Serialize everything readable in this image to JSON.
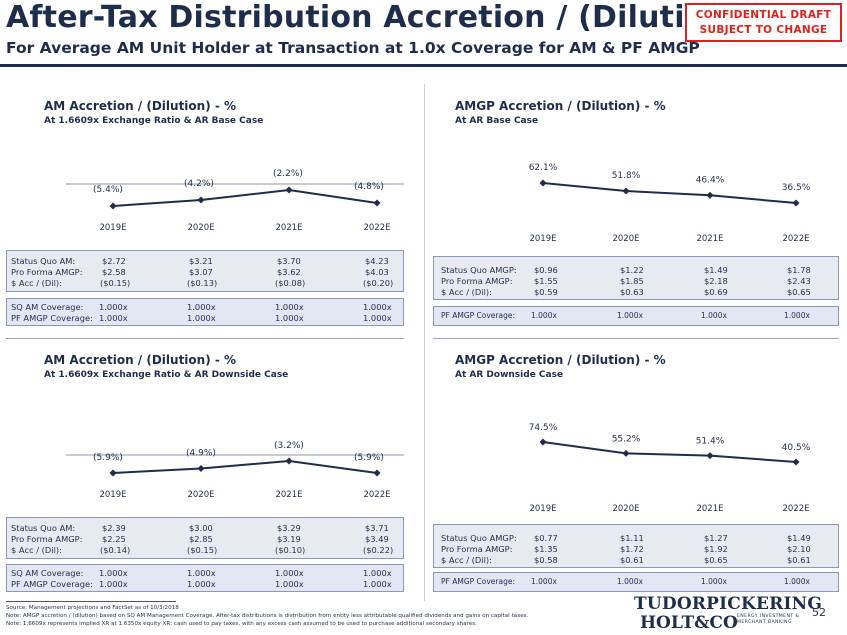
{
  "header": {
    "title": "After-Tax Distribution Accretion / (Dilution)",
    "subtitle": "For Average AM Unit Holder at Transaction at 1.0x Coverage for AM & PF AMGP",
    "confidential_line1": "CONFIDENTIAL DRAFT",
    "confidential_line2": "SUBJECT TO CHANGE"
  },
  "colors": {
    "navy": "#1f2d4d",
    "red": "#e02020",
    "table_bg": "#e8eaf2"
  },
  "years": [
    "2019E",
    "2020E",
    "2021E",
    "2022E"
  ],
  "panels": {
    "am_base": {
      "title": "AM Accretion / (Dilution) - %",
      "subtitle": "At 1.6609x Exchange Ratio & AR Base Case",
      "labels": [
        "(5.4%)",
        "(4.2%)",
        "(2.2%)",
        "(4.8%)"
      ],
      "table": {
        "row1": {
          "label": "Status Quo AM:",
          "values": [
            "$2.72",
            "$3.21",
            "$3.70",
            "$4.23"
          ]
        },
        "row2": {
          "label": "Pro Forma AMGP:",
          "values": [
            "$2.58",
            "$3.07",
            "$3.62",
            "$4.03"
          ]
        },
        "row3": {
          "label": "$ Acc / (Dil):",
          "values": [
            "($0.15)",
            "($0.13)",
            "($0.08)",
            "($0.20)"
          ]
        }
      },
      "coverage": {
        "row1": {
          "label": "SQ AM Coverage:",
          "values": [
            "1.000x",
            "1.000x",
            "1.000x",
            "1.000x"
          ]
        },
        "row2": {
          "label": "PF AMGP Coverage:",
          "values": [
            "1.000x",
            "1.000x",
            "1.000x",
            "1.000x"
          ]
        }
      }
    },
    "amgp_base": {
      "title": "AMGP Accretion / (Dilution) - %",
      "subtitle": "At AR Base Case",
      "labels": [
        "62.1%",
        "51.8%",
        "46.4%",
        "36.5%"
      ],
      "table": {
        "row1": {
          "label": "Status Quo AMGP:",
          "values": [
            "$0.96",
            "$1.22",
            "$1.49",
            "$1.78"
          ]
        },
        "row2": {
          "label": "Pro Forma AMGP:",
          "values": [
            "$1.55",
            "$1.85",
            "$2.18",
            "$2.43"
          ]
        },
        "row3": {
          "label": "$ Acc / (Dil):",
          "values": [
            "$0.59",
            "$0.63",
            "$0.69",
            "$0.65"
          ]
        }
      },
      "coverage": {
        "row1": {
          "label": "PF AMGP Coverage:",
          "values": [
            "1.000x",
            "1.000x",
            "1.000x",
            "1.000x"
          ]
        }
      }
    },
    "am_down": {
      "title": "AM Accretion / (Dilution) - %",
      "subtitle": "At 1.6609x Exchange Ratio & AR Downside Case",
      "labels": [
        "(5.9%)",
        "(4.9%)",
        "(3.2%)",
        "(5.9%)"
      ],
      "table": {
        "row1": {
          "label": "Status Quo AM:",
          "values": [
            "$2.39",
            "$3.00",
            "$3.29",
            "$3.71"
          ]
        },
        "row2": {
          "label": "Pro Forma AMGP:",
          "values": [
            "$2.25",
            "$2.85",
            "$3.19",
            "$3.49"
          ]
        },
        "row3": {
          "label": "$ Acc / (Dil):",
          "values": [
            "($0.14)",
            "($0.15)",
            "($0.10)",
            "($0.22)"
          ]
        }
      },
      "coverage": {
        "row1": {
          "label": "SQ AM Coverage:",
          "values": [
            "1.000x",
            "1.000x",
            "1.000x",
            "1.000x"
          ]
        },
        "row2": {
          "label": "PF AMGP Coverage:",
          "values": [
            "1.000x",
            "1.000x",
            "1.000x",
            "1.000x"
          ]
        }
      }
    },
    "amgp_down": {
      "title": "AMGP Accretion / (Dilution) - %",
      "subtitle": "At AR Downside Case",
      "labels": [
        "74.5%",
        "55.2%",
        "51.4%",
        "40.5%"
      ],
      "table": {
        "row1": {
          "label": "Status Quo AMGP:",
          "values": [
            "$0.77",
            "$1.11",
            "$1.27",
            "$1.49"
          ]
        },
        "row2": {
          "label": "Pro Forma AMGP:",
          "values": [
            "$1.35",
            "$1.72",
            "$1.92",
            "$2.10"
          ]
        },
        "row3": {
          "label": "$ Acc / (Dil):",
          "values": [
            "$0.58",
            "$0.61",
            "$0.65",
            "$0.61"
          ]
        }
      },
      "coverage": {
        "row1": {
          "label": "PF AMGP Coverage:",
          "values": [
            "1.000x",
            "1.000x",
            "1.000x",
            "1.000x"
          ]
        }
      }
    }
  },
  "chart_data": [
    {
      "type": "line",
      "x": [
        "2019E",
        "2020E",
        "2021E",
        "2022E"
      ],
      "series": [
        {
          "values": [
            -5.4,
            -4.2,
            -2.2,
            -4.8
          ]
        }
      ]
    },
    {
      "type": "line",
      "x": [
        "2019E",
        "2020E",
        "2021E",
        "2022E"
      ],
      "series": [
        {
          "values": [
            62.1,
            51.8,
            46.4,
            36.5
          ]
        }
      ]
    },
    {
      "type": "line",
      "x": [
        "2019E",
        "2020E",
        "2021E",
        "2022E"
      ],
      "series": [
        {
          "values": [
            -5.9,
            -4.9,
            -3.2,
            -5.9
          ]
        }
      ]
    },
    {
      "type": "line",
      "x": [
        "2019E",
        "2020E",
        "2021E",
        "2022E"
      ],
      "series": [
        {
          "values": [
            74.5,
            55.2,
            51.4,
            40.5
          ]
        }
      ]
    }
  ],
  "footer": {
    "source": "Source: Management projections and FactSet as of 10/3/2018",
    "note1": "Note: AMGP accretion / (dilution) based on SQ AM Management Coverage. After-tax distributions is distribution from entity less attributable qualified dividends and gains on capital taxes.",
    "note2": "Note: 1.6609x represents implied XR at 1.6350x equity XR; cash used to pay taxes, with any excess cash assumed to be used to purchase additional secondary shares.",
    "logo_line1": "TUDORPICKERING",
    "logo_line2": "HOLT&CO",
    "logo_tag1": "ENERGY INVESTMENT &",
    "logo_tag2": "MERCHANT BANKING",
    "page": "52"
  }
}
